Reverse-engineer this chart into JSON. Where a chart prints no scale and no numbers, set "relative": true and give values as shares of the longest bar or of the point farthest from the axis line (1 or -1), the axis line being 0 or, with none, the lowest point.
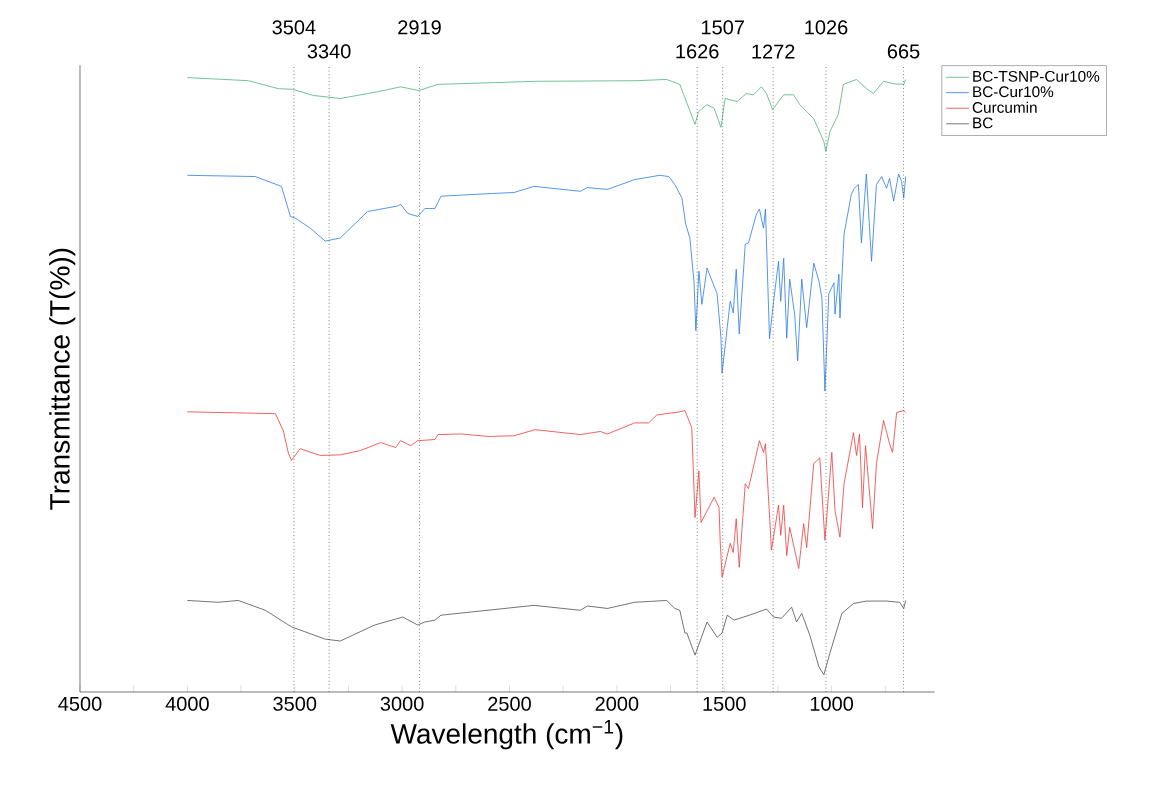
{
  "chart_data": {
    "type": "line",
    "relative": true,
    "xlabel": "Wavelength (cm$^{−1}$)",
    "ylabel": "Transmittance (T(%))",
    "xlim": [
      4500,
      520
    ],
    "xticks": [
      4500,
      {
        "value": 4250,
        "label": null
      },
      4000,
      {
        "value": 3750,
        "label": null
      },
      3500,
      {
        "value": 3250,
        "label": null
      },
      3000,
      {
        "value": 2750,
        "label": null
      },
      2500,
      {
        "value": 2250,
        "label": null
      },
      2000,
      {
        "value": 1750,
        "label": null
      },
      1500,
      {
        "value": 1250,
        "label": null
      },
      1000,
      {
        "value": 750,
        "label": null
      }
    ],
    "legend": "top right",
    "ref_lines": [
      {
        "axis": "x",
        "value": 3504,
        "label": "3504",
        "line_style": "dotted"
      },
      {
        "axis": "x",
        "value": 3340,
        "label": "3340",
        "line_style": "dotted"
      },
      {
        "axis": "x",
        "value": 2919,
        "label": "2919",
        "line_style": "dotted"
      },
      {
        "axis": "x",
        "value": 1626,
        "label": "1626",
        "line_style": "dotted"
      },
      {
        "axis": "x",
        "value": 1507,
        "label": "1507",
        "line_style": "dotted"
      },
      {
        "axis": "x",
        "value": 1272,
        "label": "1272",
        "line_style": "dotted"
      },
      {
        "axis": "x",
        "value": 1026,
        "label": "1026",
        "line_style": "dotted"
      },
      {
        "axis": "x",
        "value": 665,
        "label": "665",
        "line_style": "dotted"
      }
    ],
    "series": [
      {
        "name": "BC-TSNP-Cur10%",
        "color": "#4fb37a",
        "x": [
          4000,
          3716,
          3576,
          3510,
          3414,
          3288,
          3114,
          3007,
          2922,
          2833,
          2372,
          1908,
          1768,
          1707,
          1636,
          1619,
          1580,
          1547,
          1515,
          1496,
          1440,
          1397,
          1364,
          1327,
          1303,
          1275,
          1223,
          1177,
          1148,
          1083,
          1036,
          1027,
          1008,
          969,
          945,
          884,
          837,
          805,
          758,
          711,
          664,
          655
        ],
        "values": [
          1.0,
          0.995,
          0.982,
          0.981,
          0.971,
          0.966,
          0.977,
          0.985,
          0.979,
          0.989,
          0.994,
          0.995,
          0.997,
          0.989,
          0.924,
          0.945,
          0.956,
          0.95,
          0.919,
          0.966,
          0.961,
          0.974,
          0.972,
          0.985,
          0.974,
          0.948,
          0.972,
          0.972,
          0.956,
          0.933,
          0.896,
          0.88,
          0.912,
          0.94,
          0.989,
          0.997,
          0.982,
          0.974,
          0.994,
          0.99,
          0.989,
          0.997
        ]
      },
      {
        "name": "BC-Cur10%",
        "color": "#2a7be4",
        "x": [
          4000,
          3684,
          3562,
          3520,
          3496,
          3428,
          3358,
          3288,
          3161,
          3021,
          3007,
          2974,
          2927,
          2894,
          2847,
          2819,
          2660,
          2479,
          2386,
          2170,
          2137,
          2044,
          1917,
          1800,
          1758,
          1730,
          1697,
          1679,
          1660,
          1641,
          1632,
          1618,
          1604,
          1580,
          1533,
          1515,
          1510,
          1486,
          1472,
          1458,
          1444,
          1430,
          1402,
          1387,
          1350,
          1336,
          1317,
          1308,
          1289,
          1270,
          1247,
          1237,
          1223,
          1209,
          1195,
          1172,
          1158,
          1139,
          1116,
          1083,
          1059,
          1045,
          1031,
          1013,
          989,
          984,
          966,
          961,
          942,
          908,
          894,
          875,
          861,
          838,
          814,
          791,
          767,
          744,
          730,
          711,
          688,
          674,
          664,
          655
        ],
        "values": [
          0.841,
          0.839,
          0.823,
          0.774,
          0.771,
          0.755,
          0.734,
          0.739,
          0.782,
          0.791,
          0.794,
          0.779,
          0.774,
          0.787,
          0.787,
          0.807,
          0.81,
          0.813,
          0.823,
          0.815,
          0.821,
          0.818,
          0.834,
          0.841,
          0.839,
          0.826,
          0.804,
          0.761,
          0.739,
          0.669,
          0.588,
          0.685,
          0.631,
          0.69,
          0.648,
          0.576,
          0.519,
          0.593,
          0.636,
          0.617,
          0.688,
          0.583,
          0.729,
          0.731,
          0.778,
          0.786,
          0.755,
          0.786,
          0.575,
          0.636,
          0.701,
          0.636,
          0.706,
          0.576,
          0.672,
          0.615,
          0.539,
          0.672,
          0.593,
          0.698,
          0.669,
          0.641,
          0.49,
          0.648,
          0.666,
          0.615,
          0.68,
          0.609,
          0.745,
          0.81,
          0.82,
          0.826,
          0.731,
          0.843,
          0.701,
          0.826,
          0.839,
          0.82,
          0.836,
          0.799,
          0.843,
          0.831,
          0.804,
          0.839
        ]
      },
      {
        "name": "Curcumin",
        "color": "#f03a3a",
        "x": [
          4000,
          3590,
          3553,
          3529,
          3515,
          3475,
          3381,
          3288,
          3194,
          3100,
          3030,
          3007,
          2960,
          2927,
          2847,
          2833,
          2725,
          2599,
          2479,
          2381,
          2170,
          2077,
          2044,
          1917,
          1852,
          1814,
          1707,
          1683,
          1651,
          1636,
          1618,
          1608,
          1547,
          1524,
          1519,
          1510,
          1472,
          1458,
          1444,
          1430,
          1402,
          1387,
          1336,
          1317,
          1308,
          1280,
          1247,
          1237,
          1223,
          1209,
          1195,
          1153,
          1130,
          1116,
          1083,
          1055,
          1031,
          999,
          984,
          961,
          942,
          898,
          884,
          870,
          856,
          842,
          809,
          791,
          758,
          730,
          716,
          697,
          664,
          655
        ],
        "values": [
          0.456,
          0.453,
          0.425,
          0.388,
          0.377,
          0.396,
          0.385,
          0.386,
          0.393,
          0.406,
          0.398,
          0.409,
          0.401,
          0.409,
          0.411,
          0.419,
          0.42,
          0.416,
          0.417,
          0.427,
          0.419,
          0.424,
          0.42,
          0.438,
          0.438,
          0.451,
          0.456,
          0.458,
          0.43,
          0.284,
          0.36,
          0.276,
          0.317,
          0.3,
          0.247,
          0.187,
          0.242,
          0.227,
          0.282,
          0.203,
          0.339,
          0.331,
          0.409,
          0.39,
          0.404,
          0.231,
          0.304,
          0.255,
          0.304,
          0.222,
          0.268,
          0.201,
          0.274,
          0.235,
          0.372,
          0.381,
          0.247,
          0.39,
          0.295,
          0.252,
          0.339,
          0.422,
          0.385,
          0.42,
          0.3,
          0.401,
          0.266,
          0.372,
          0.442,
          0.404,
          0.39,
          0.455,
          0.458,
          0.455
        ]
      },
      {
        "name": "BC",
        "color": "#505050",
        "x": [
          4000,
          3857,
          3763,
          3637,
          3515,
          3358,
          3288,
          3128,
          2997,
          2927,
          2894,
          2847,
          2819,
          2386,
          2170,
          2137,
          2044,
          1917,
          1768,
          1730,
          1707,
          1683,
          1674,
          1636,
          1580,
          1533,
          1510,
          1486,
          1454,
          1383,
          1303,
          1270,
          1233,
          1186,
          1163,
          1139,
          1102,
          1059,
          1036,
          1008,
          952,
          898,
          838,
          744,
          683,
          664,
          655
        ],
        "values": [
          0.149,
          0.146,
          0.149,
          0.133,
          0.106,
          0.086,
          0.083,
          0.109,
          0.122,
          0.109,
          0.114,
          0.117,
          0.125,
          0.141,
          0.133,
          0.14,
          0.136,
          0.146,
          0.149,
          0.136,
          0.133,
          0.096,
          0.096,
          0.06,
          0.114,
          0.089,
          0.096,
          0.125,
          0.117,
          0.125,
          0.135,
          0.122,
          0.12,
          0.138,
          0.114,
          0.128,
          0.093,
          0.041,
          0.028,
          0.063,
          0.128,
          0.144,
          0.148,
          0.148,
          0.146,
          0.136,
          0.149
        ]
      }
    ]
  }
}
